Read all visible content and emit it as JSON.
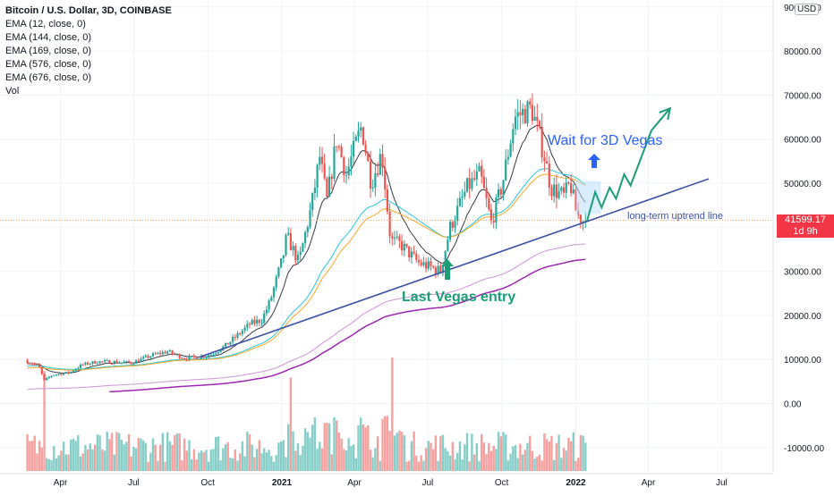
{
  "header": {
    "title": "Bitcoin / U.S. Dollar, 3D, COINBASE",
    "indicators": [
      "EMA (12, close, 0)",
      "EMA (144, close, 0)",
      "EMA (169, close, 0)",
      "EMA (576, close, 0)",
      "EMA (676, close, 0)",
      "Vol"
    ]
  },
  "price_axis": {
    "currency": "USD",
    "labels": [
      "90000.00",
      "80000.00",
      "70000.00",
      "60000.00",
      "50000.00",
      "30000.00",
      "20000.00",
      "10000.00",
      "0.00",
      "-10000.00"
    ],
    "current_price": "41599.17",
    "countdown": "1d 9h"
  },
  "time_axis": {
    "labels": [
      "Apr",
      "Jul",
      "Oct",
      "2021",
      "Apr",
      "Jul",
      "Oct",
      "2022",
      "Apr",
      "Jul"
    ]
  },
  "annotations": {
    "wait_text": "Wait for 3D Vegas",
    "entry_text": "Last Vegas entry",
    "trendline_text": "long-term uptrend line"
  },
  "colors": {
    "up": "#26a69a",
    "down": "#ef5350",
    "ema12": "#363a45",
    "ema144": "#26c6da",
    "ema169": "#f9a825",
    "ema576": "#ce93d8",
    "ema676": "#9c27b0",
    "trendline": "#3f51a5",
    "forecast": "#1b9e77",
    "wait_text": "#2962ff",
    "entry_text": "#1b9e77",
    "current_price": "#f23645"
  },
  "chart_data": {
    "type": "candlestick",
    "symbol": "BTCUSD",
    "exchange": "COINBASE",
    "interval": "3D",
    "y_axis": {
      "min": -10000,
      "max": 90000,
      "unit": "USD"
    },
    "x_axis": {
      "start": "2020-02",
      "end": "2022-08"
    },
    "price_path": [
      [
        "2020-02-20",
        9800
      ],
      [
        "2020-03-08",
        8500
      ],
      [
        "2020-03-15",
        5200
      ],
      [
        "2020-03-25",
        6500
      ],
      [
        "2020-04-15",
        7000
      ],
      [
        "2020-05-01",
        8800
      ],
      [
        "2020-05-20",
        9500
      ],
      [
        "2020-06-15",
        9400
      ],
      [
        "2020-07-01",
        9200
      ],
      [
        "2020-07-28",
        11000
      ],
      [
        "2020-08-15",
        11800
      ],
      [
        "2020-09-05",
        10300
      ],
      [
        "2020-09-25",
        10600
      ],
      [
        "2020-10-10",
        11300
      ],
      [
        "2020-10-25",
        13000
      ],
      [
        "2020-11-10",
        15500
      ],
      [
        "2020-11-25",
        18000
      ],
      [
        "2020-12-10",
        19000
      ],
      [
        "2020-12-20",
        23000
      ],
      [
        "2021-01-05",
        33000
      ],
      [
        "2021-01-10",
        38000
      ],
      [
        "2021-01-25",
        32000
      ],
      [
        "2021-02-10",
        45000
      ],
      [
        "2021-02-20",
        56000
      ],
      [
        "2021-03-01",
        46000
      ],
      [
        "2021-03-13",
        60000
      ],
      [
        "2021-03-25",
        52000
      ],
      [
        "2021-04-13",
        63000
      ],
      [
        "2021-04-25",
        50000
      ],
      [
        "2021-05-08",
        57000
      ],
      [
        "2021-05-19",
        37000
      ],
      [
        "2021-06-01",
        36000
      ],
      [
        "2021-06-22",
        32000
      ],
      [
        "2021-07-20",
        30000
      ],
      [
        "2021-08-01",
        40000
      ],
      [
        "2021-08-22",
        49000
      ],
      [
        "2021-09-07",
        52000
      ],
      [
        "2021-09-21",
        41000
      ],
      [
        "2021-10-05",
        50000
      ],
      [
        "2021-10-20",
        65000
      ],
      [
        "2021-11-10",
        67000
      ],
      [
        "2021-11-25",
        57000
      ],
      [
        "2021-12-04",
        49000
      ],
      [
        "2021-12-20",
        47000
      ],
      [
        "2021-12-28",
        50000
      ],
      [
        "2022-01-05",
        43000
      ],
      [
        "2022-01-13",
        41600
      ]
    ],
    "series": [
      {
        "name": "EMA (12, close, 0)",
        "color": "#363a45"
      },
      {
        "name": "EMA (144, close, 0)",
        "color": "#26c6da"
      },
      {
        "name": "EMA (169, close, 0)",
        "color": "#f9a825"
      },
      {
        "name": "EMA (576, close, 0)",
        "color": "#ce93d8"
      },
      {
        "name": "EMA (676, close, 0)",
        "color": "#9c27b0"
      },
      {
        "name": "Vol",
        "color": "#26a69a"
      }
    ],
    "current_price": 41599.17,
    "trendline": {
      "from": [
        "2020-09-20",
        10500
      ],
      "to": [
        "2022-06-15",
        51000
      ]
    },
    "forecast_path": [
      [
        "2022-01-15",
        41500
      ],
      [
        "2022-01-25",
        48000
      ],
      [
        "2022-02-02",
        44500
      ],
      [
        "2022-02-12",
        49000
      ],
      [
        "2022-02-20",
        46500
      ],
      [
        "2022-03-02",
        52000
      ],
      [
        "2022-03-10",
        49500
      ],
      [
        "2022-04-05",
        62000
      ],
      [
        "2022-04-28",
        67000
      ]
    ],
    "wait_zone": {
      "from": "2022-01-01",
      "to": "2022-02-01",
      "low": 43000,
      "high": 50500
    }
  }
}
